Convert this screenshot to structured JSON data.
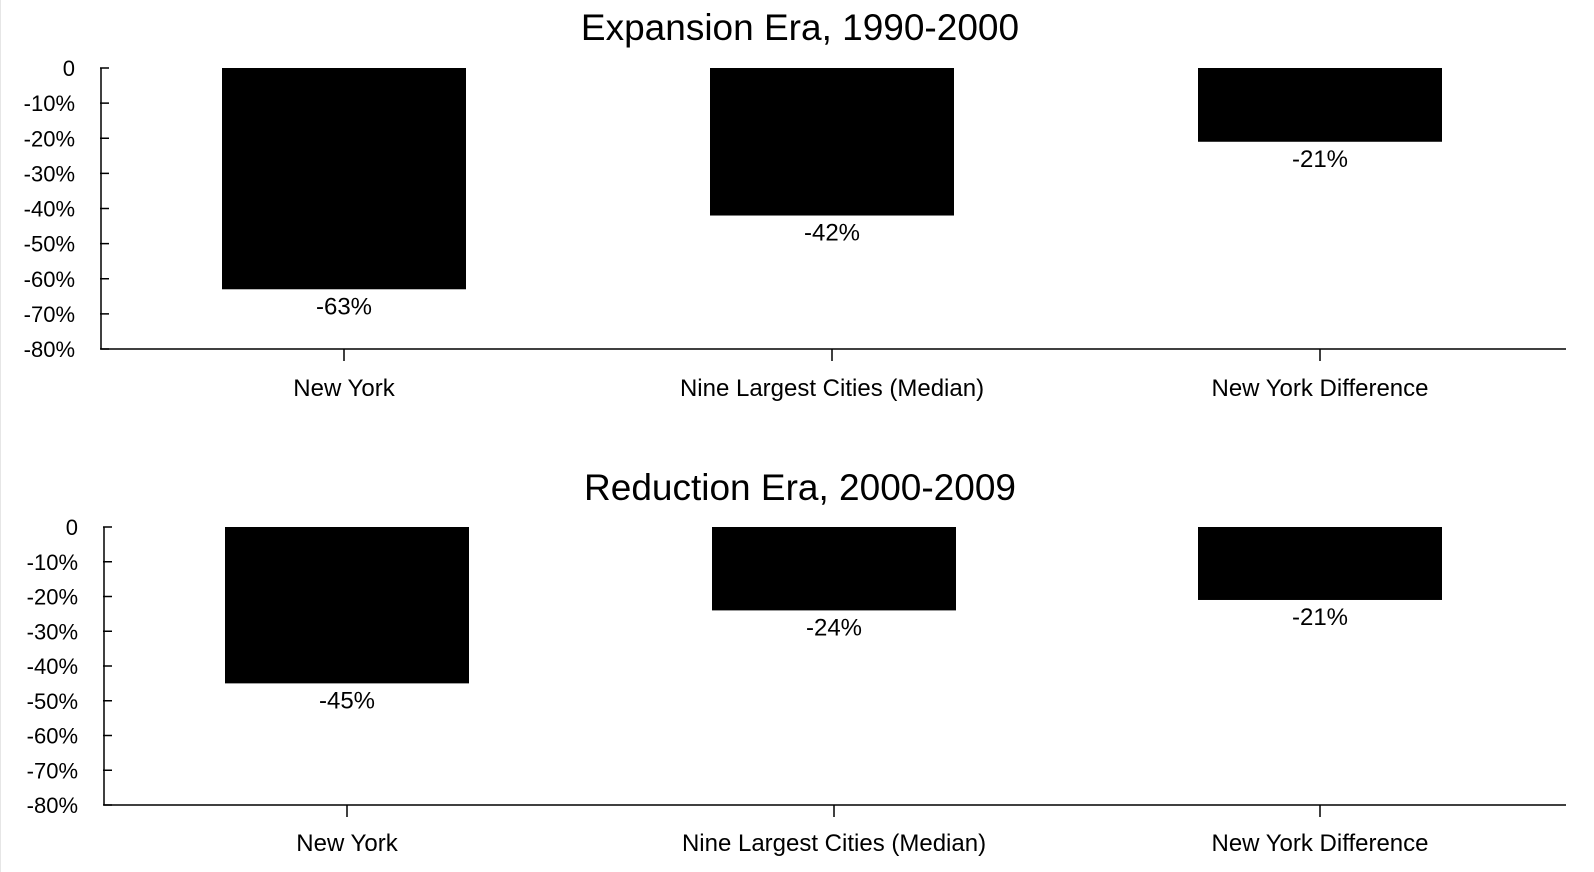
{
  "chart_data": [
    {
      "type": "bar",
      "title": "Expansion Era, 1990-2000",
      "categories": [
        "New York",
        "Nine Largest Cities (Median)",
        "New York Difference"
      ],
      "values": [
        -63,
        -42,
        -21
      ],
      "data_labels": [
        "-63%",
        "-42%",
        "-21%"
      ],
      "ylim": [
        -80,
        0
      ],
      "yticks": [
        0,
        -10,
        -20,
        -30,
        -40,
        -50,
        -60,
        -70,
        -80
      ],
      "ytick_labels": [
        "0",
        "-10%",
        "-20%",
        "-30%",
        "-40%",
        "-50%",
        "-60%",
        "-70%",
        "-80%"
      ],
      "xlabel": "",
      "ylabel": "",
      "grid": false,
      "bar_color": "#000000"
    },
    {
      "type": "bar",
      "title": "Reduction Era, 2000-2009",
      "categories": [
        "New York",
        "Nine Largest Cities (Median)",
        "New York Difference"
      ],
      "values": [
        -45,
        -24,
        -21
      ],
      "data_labels": [
        "-45%",
        "-24%",
        "-21%"
      ],
      "ylim": [
        -80,
        0
      ],
      "yticks": [
        0,
        -10,
        -20,
        -30,
        -40,
        -50,
        -60,
        -70,
        -80
      ],
      "ytick_labels": [
        "0",
        "-10%",
        "-20%",
        "-30%",
        "-40%",
        "-50%",
        "-60%",
        "-70%",
        "-80%"
      ],
      "xlabel": "",
      "ylabel": "",
      "grid": false,
      "bar_color": "#000000"
    }
  ]
}
